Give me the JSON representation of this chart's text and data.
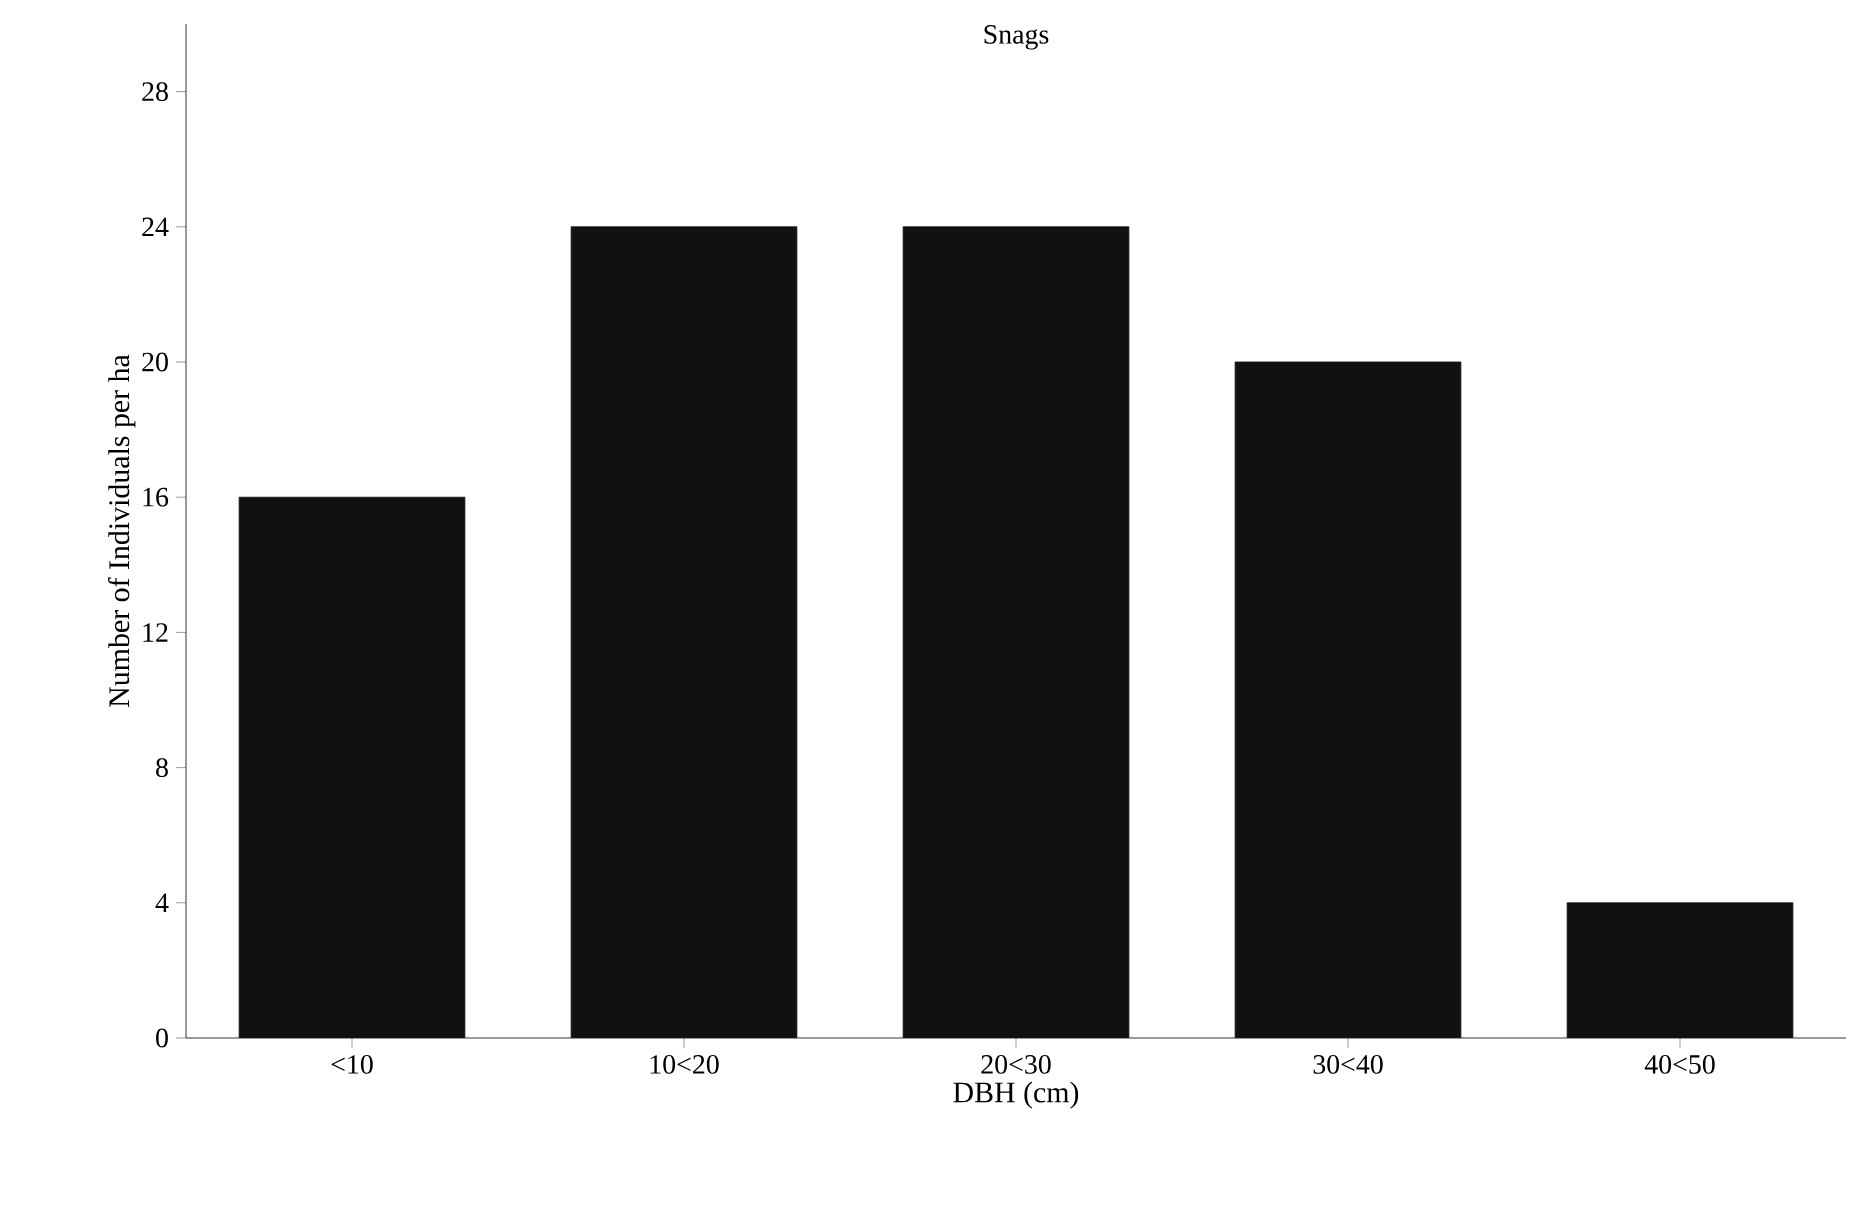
{
  "chart_data": {
    "type": "bar",
    "title": "Snags",
    "xlabel": "DBH (cm)",
    "ylabel": "Number of Individuals per ha",
    "categories": [
      "<10",
      "10<20",
      "20<30",
      "30<40",
      "40<50"
    ],
    "values": [
      16,
      24,
      24,
      20,
      4
    ],
    "color": "#111111",
    "ylim": [
      0,
      30
    ],
    "yticks": [
      0,
      4,
      8,
      12,
      16,
      20,
      24,
      28
    ],
    "grid": false
  }
}
